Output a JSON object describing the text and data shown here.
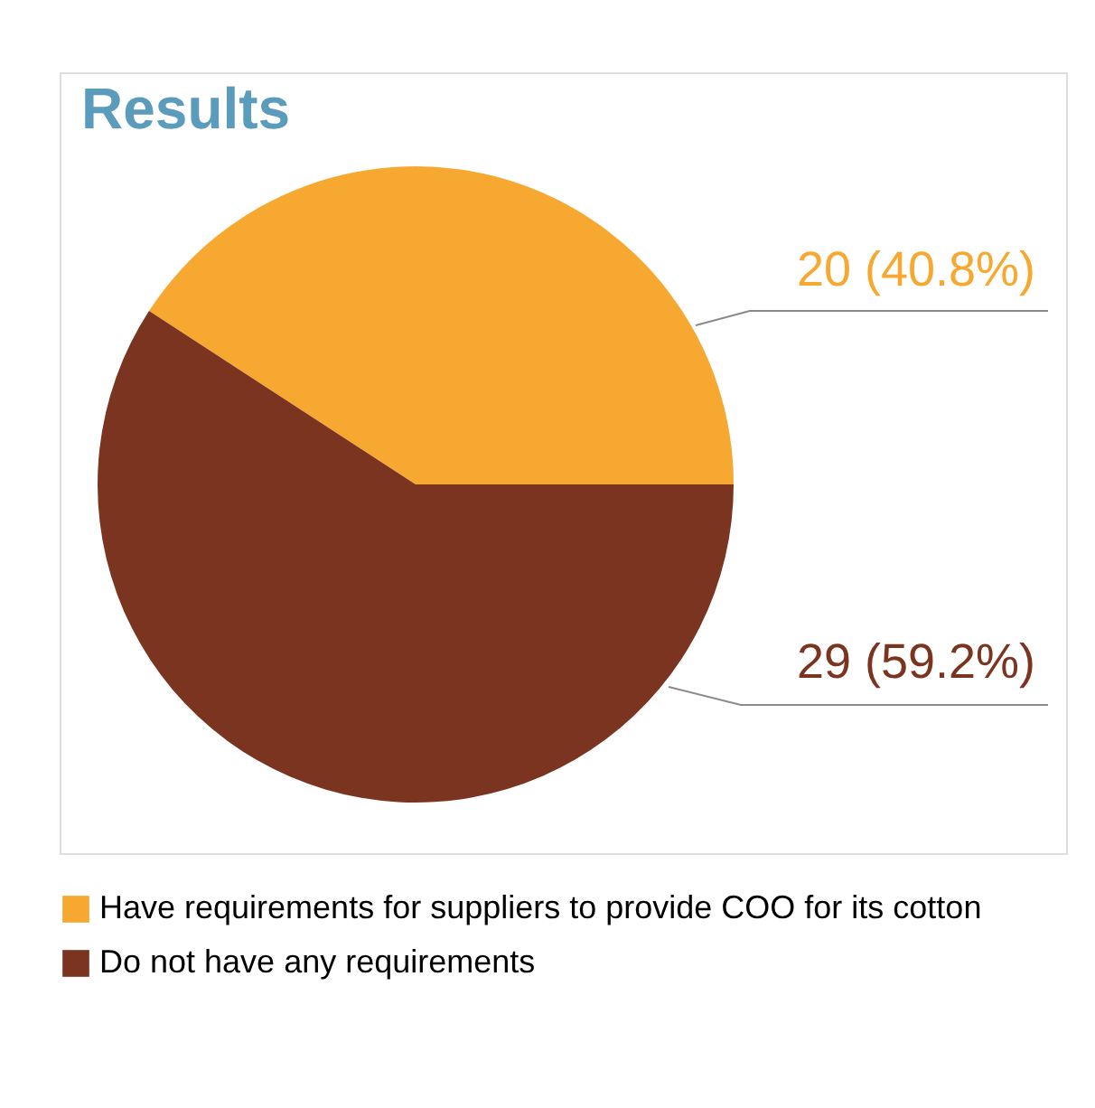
{
  "chart_data": {
    "type": "pie",
    "title": "Results",
    "categories": [
      "Have requirements for suppliers to provide COO for its cotton",
      "Do not have any requirements"
    ],
    "values": [
      20,
      29
    ],
    "colors": [
      "#f6a830",
      "#7b3420"
    ],
    "value_labels": [
      "20 (40.8%)",
      "29 (59.2%)"
    ],
    "legend": "bottom"
  }
}
